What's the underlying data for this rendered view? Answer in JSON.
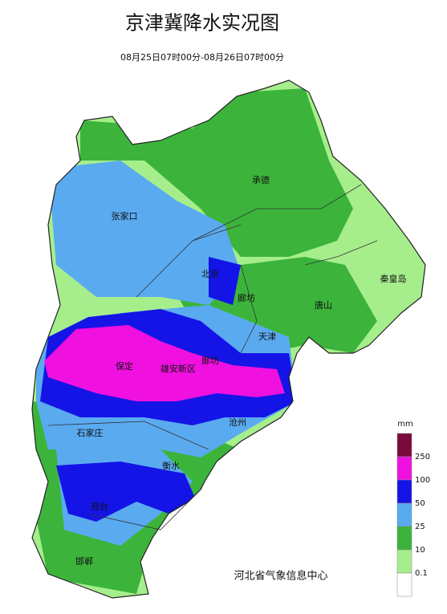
{
  "title": "京津冀降水实况图",
  "subtitle": "08月25日07时00分-08月26日07时00分",
  "cities": [
    "承德",
    "张家口",
    "北京",
    "廊坊",
    "秦皇岛",
    "唐山",
    "天津",
    "保定",
    "雄安新区",
    "廊坊",
    "沧州",
    "石家庄",
    "衡水",
    "邢台",
    "邯郸"
  ],
  "legend": {
    "unit": "mm",
    "ticks": [
      250,
      100,
      50,
      25,
      10,
      0.1
    ],
    "colors": [
      "#7a0a3c",
      "#f010e0",
      "#1414e6",
      "#5aaaf0",
      "#3cb43c",
      "#a6ee8c",
      "#ffffff"
    ]
  },
  "footer": "河北省气象信息中心"
}
